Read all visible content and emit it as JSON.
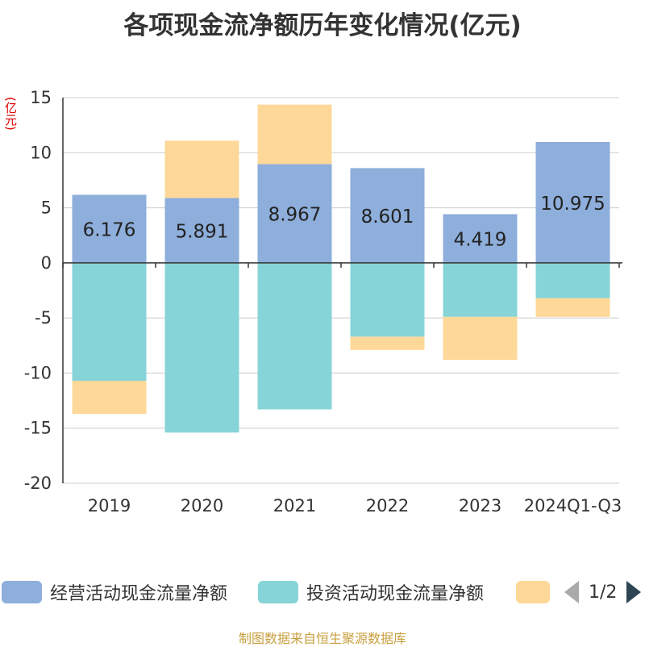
{
  "title": "各项现金流净额历年变化情况(亿元)",
  "unit_label": "(亿元)",
  "footer": "制图数据来自恒生聚源数据库",
  "legend": {
    "items": [
      {
        "label": "经营活动现金流量净额",
        "color": "#8eaedb"
      },
      {
        "label": "投资活动现金流量净额",
        "color": "#86d4d8"
      },
      {
        "label": "",
        "color": "#fdd899"
      }
    ],
    "page": "1/2"
  },
  "chart_data": {
    "type": "bar",
    "stacked": true,
    "categories": [
      "2019",
      "2020",
      "2021",
      "2022",
      "2023",
      "2024Q1-Q3"
    ],
    "ylim": [
      -20,
      15
    ],
    "yticks": [
      15,
      10,
      5,
      0,
      -5,
      -10,
      -15,
      -20
    ],
    "grid": true,
    "legend_position": "bottom",
    "series": [
      {
        "name": "经营活动现金流量净额",
        "color": "#8eaedb",
        "values": [
          6.176,
          5.891,
          8.967,
          8.601,
          4.419,
          10.975
        ],
        "labels": [
          "6.176",
          "5.891",
          "8.967",
          "8.601",
          "4.419",
          "10.975"
        ]
      },
      {
        "name": "投资活动现金流量净额",
        "color": "#86d4d8",
        "values": [
          -10.7,
          -15.4,
          -13.3,
          -6.7,
          -4.9,
          -3.2
        ]
      },
      {
        "color": "#fdd899",
        "values": [
          -3.0,
          5.2,
          5.4,
          -1.2,
          -3.9,
          -1.7
        ]
      }
    ]
  }
}
